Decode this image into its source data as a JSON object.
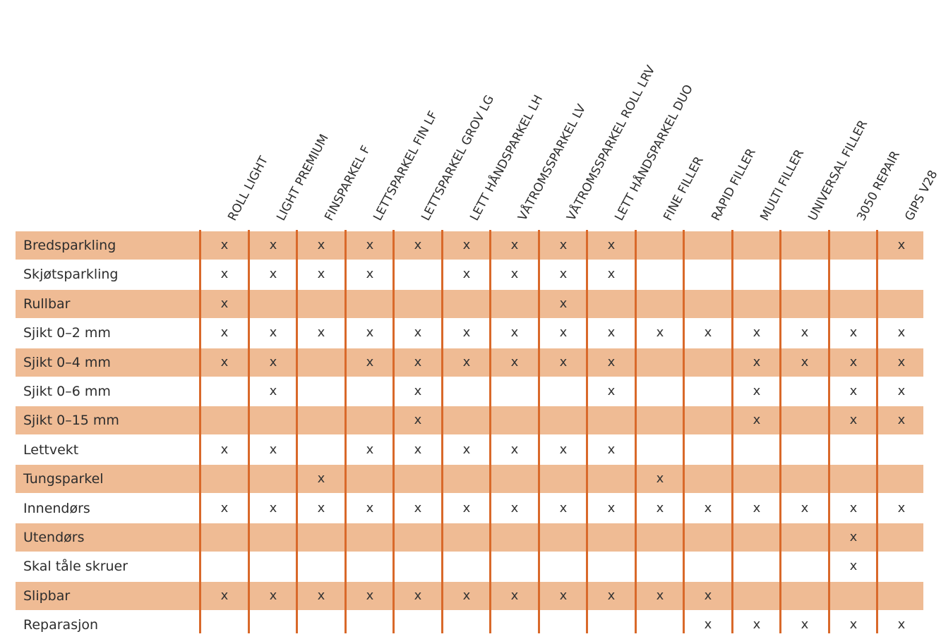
{
  "products": [
    "ROLL LIGHT",
    "LIGHT PREMIUM",
    "FINSPARKEL F",
    "LETTSPARKEL FIN LF",
    "LETTSPARKEL GROV LG",
    "LETT HÅNDSPARKEL LH",
    "VÅTROMSSPARKEL LV",
    "VÅTROMSSPARKEL ROLL LRV",
    "LETT HÅNDSPARKEL DUO",
    "FINE FILLER",
    "RAPID FILLER",
    "MULTI FILLER",
    "UNIVERSAL FILLER",
    "3050 REPAIR",
    "GIPS V28"
  ],
  "mark_symbol": "x",
  "colors": {
    "row_shade": "#efbb94",
    "divider": "#d9692a"
  },
  "rows": [
    {
      "label": "Bredsparkling",
      "marks": [
        1,
        1,
        1,
        1,
        1,
        1,
        1,
        1,
        1,
        0,
        0,
        0,
        0,
        0,
        1
      ]
    },
    {
      "label": "Skjøtsparkling",
      "marks": [
        1,
        1,
        1,
        1,
        0,
        1,
        1,
        1,
        1,
        0,
        0,
        0,
        0,
        0,
        0
      ]
    },
    {
      "label": "Rullbar",
      "marks": [
        1,
        0,
        0,
        0,
        0,
        0,
        0,
        1,
        0,
        0,
        0,
        0,
        0,
        0,
        0
      ]
    },
    {
      "label": "Sjikt 0–2 mm",
      "marks": [
        1,
        1,
        1,
        1,
        1,
        1,
        1,
        1,
        1,
        1,
        1,
        1,
        1,
        1,
        1
      ]
    },
    {
      "label": "Sjikt 0–4 mm",
      "marks": [
        1,
        1,
        0,
        1,
        1,
        1,
        1,
        1,
        1,
        0,
        0,
        1,
        1,
        1,
        1
      ]
    },
    {
      "label": "Sjikt 0–6 mm",
      "marks": [
        0,
        1,
        0,
        0,
        1,
        0,
        0,
        0,
        1,
        0,
        0,
        1,
        0,
        1,
        1
      ]
    },
    {
      "label": "Sjikt 0–15 mm",
      "marks": [
        0,
        0,
        0,
        0,
        1,
        0,
        0,
        0,
        0,
        0,
        0,
        1,
        0,
        1,
        1
      ]
    },
    {
      "label": "Lettvekt",
      "marks": [
        1,
        1,
        0,
        1,
        1,
        1,
        1,
        1,
        1,
        0,
        0,
        0,
        0,
        0,
        0
      ]
    },
    {
      "label": "Tungsparkel",
      "marks": [
        0,
        0,
        1,
        0,
        0,
        0,
        0,
        0,
        0,
        1,
        0,
        0,
        0,
        0,
        0
      ]
    },
    {
      "label": "Innendørs",
      "marks": [
        1,
        1,
        1,
        1,
        1,
        1,
        1,
        1,
        1,
        1,
        1,
        1,
        1,
        1,
        1
      ]
    },
    {
      "label": "Utendørs",
      "marks": [
        0,
        0,
        0,
        0,
        0,
        0,
        0,
        0,
        0,
        0,
        0,
        0,
        0,
        1,
        0
      ]
    },
    {
      "label": "Skal tåle skruer",
      "marks": [
        0,
        0,
        0,
        0,
        0,
        0,
        0,
        0,
        0,
        0,
        0,
        0,
        0,
        1,
        0
      ]
    },
    {
      "label": "Slipbar",
      "marks": [
        1,
        1,
        1,
        1,
        1,
        1,
        1,
        1,
        1,
        1,
        1,
        0,
        0,
        0,
        0
      ]
    },
    {
      "label": "Reparasjon",
      "marks": [
        0,
        0,
        0,
        0,
        0,
        0,
        0,
        0,
        0,
        0,
        1,
        1,
        1,
        1,
        1
      ]
    }
  ]
}
